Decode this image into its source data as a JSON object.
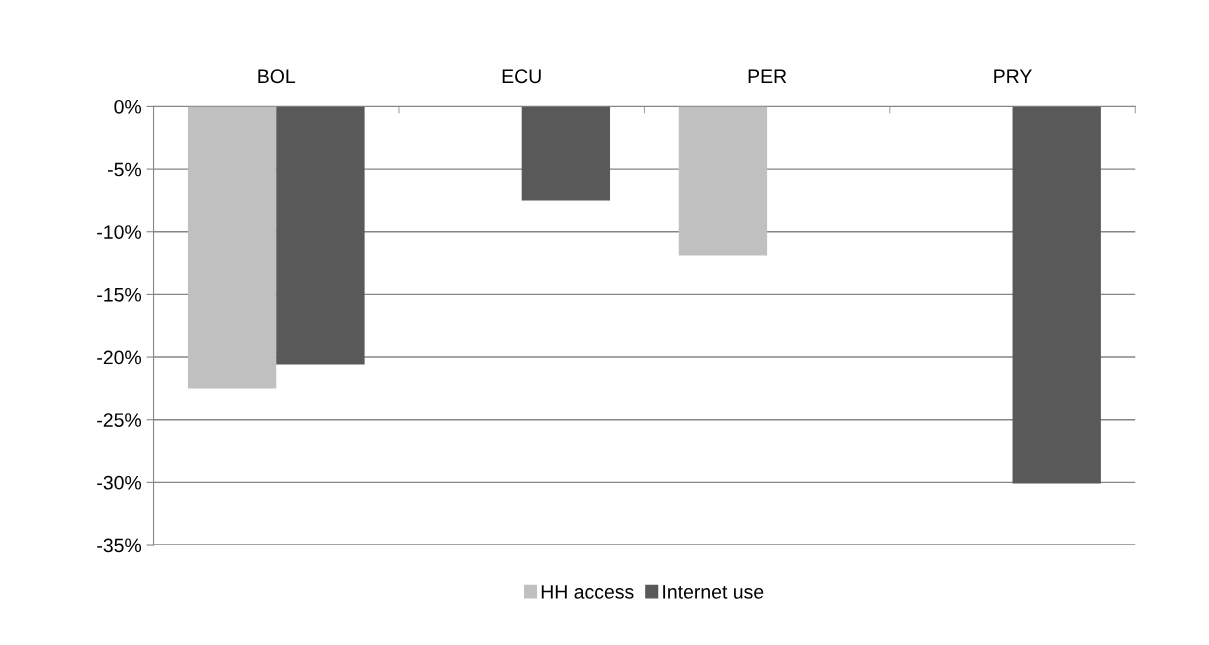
{
  "chart_data": {
    "type": "bar",
    "categories": [
      "BOL",
      "ECU",
      "PER",
      "PRY"
    ],
    "series": [
      {
        "name": "HH access",
        "color": "#c0c0c0",
        "values": [
          -22.5,
          null,
          -11.9,
          null
        ]
      },
      {
        "name": "Internet use",
        "color": "#595959",
        "values": [
          -20.6,
          -7.5,
          null,
          -30.1
        ]
      }
    ],
    "ylim": [
      -35,
      0
    ],
    "yticks": [
      {
        "value": 0,
        "label": "0%"
      },
      {
        "value": -5,
        "label": "-5%"
      },
      {
        "value": -10,
        "label": "-10%"
      },
      {
        "value": -15,
        "label": "-15%"
      },
      {
        "value": -20,
        "label": "-20%"
      },
      {
        "value": -25,
        "label": "-25%"
      },
      {
        "value": -30,
        "label": "-30%"
      },
      {
        "value": -35,
        "label": "-35%"
      }
    ],
    "grid": "y",
    "legend": "bottom"
  }
}
